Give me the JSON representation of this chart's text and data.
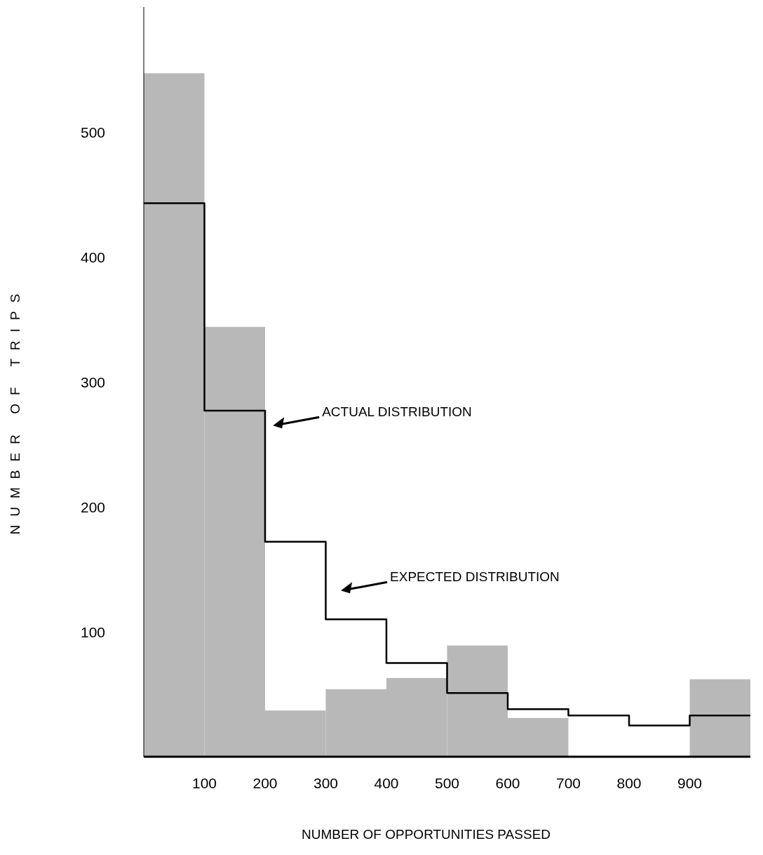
{
  "chart_data": {
    "type": "histogram",
    "xlabel": "NUMBER OF OPPORTUNITIES PASSED",
    "ylabel": "NUMBER OF TRIPS",
    "xlim": [
      0,
      1000
    ],
    "ylim": [
      0,
      600
    ],
    "xticks": [
      100,
      200,
      300,
      400,
      500,
      600,
      700,
      800,
      900
    ],
    "yticks": [
      100,
      200,
      300,
      400,
      500
    ],
    "grid": false,
    "series": [
      {
        "color": "#b8b8b8",
        "bins": [
          0,
          100,
          200,
          300,
          400,
          500,
          600,
          700,
          800,
          900,
          1000
        ],
        "values": [
          547,
          344,
          37,
          54,
          63,
          89,
          31,
          0,
          0,
          62
        ]
      },
      {
        "type": "step",
        "color": "#000000",
        "x": [
          0,
          100,
          200,
          300,
          400,
          500,
          600,
          700,
          800,
          900,
          1000
        ],
        "values": [
          443,
          277,
          172,
          110,
          75,
          51,
          38,
          33,
          25,
          33,
          33
        ]
      }
    ],
    "annotations": [
      "ACTUAL DISTRIBUTION",
      "EXPECTED DISTRIBUTION"
    ]
  }
}
